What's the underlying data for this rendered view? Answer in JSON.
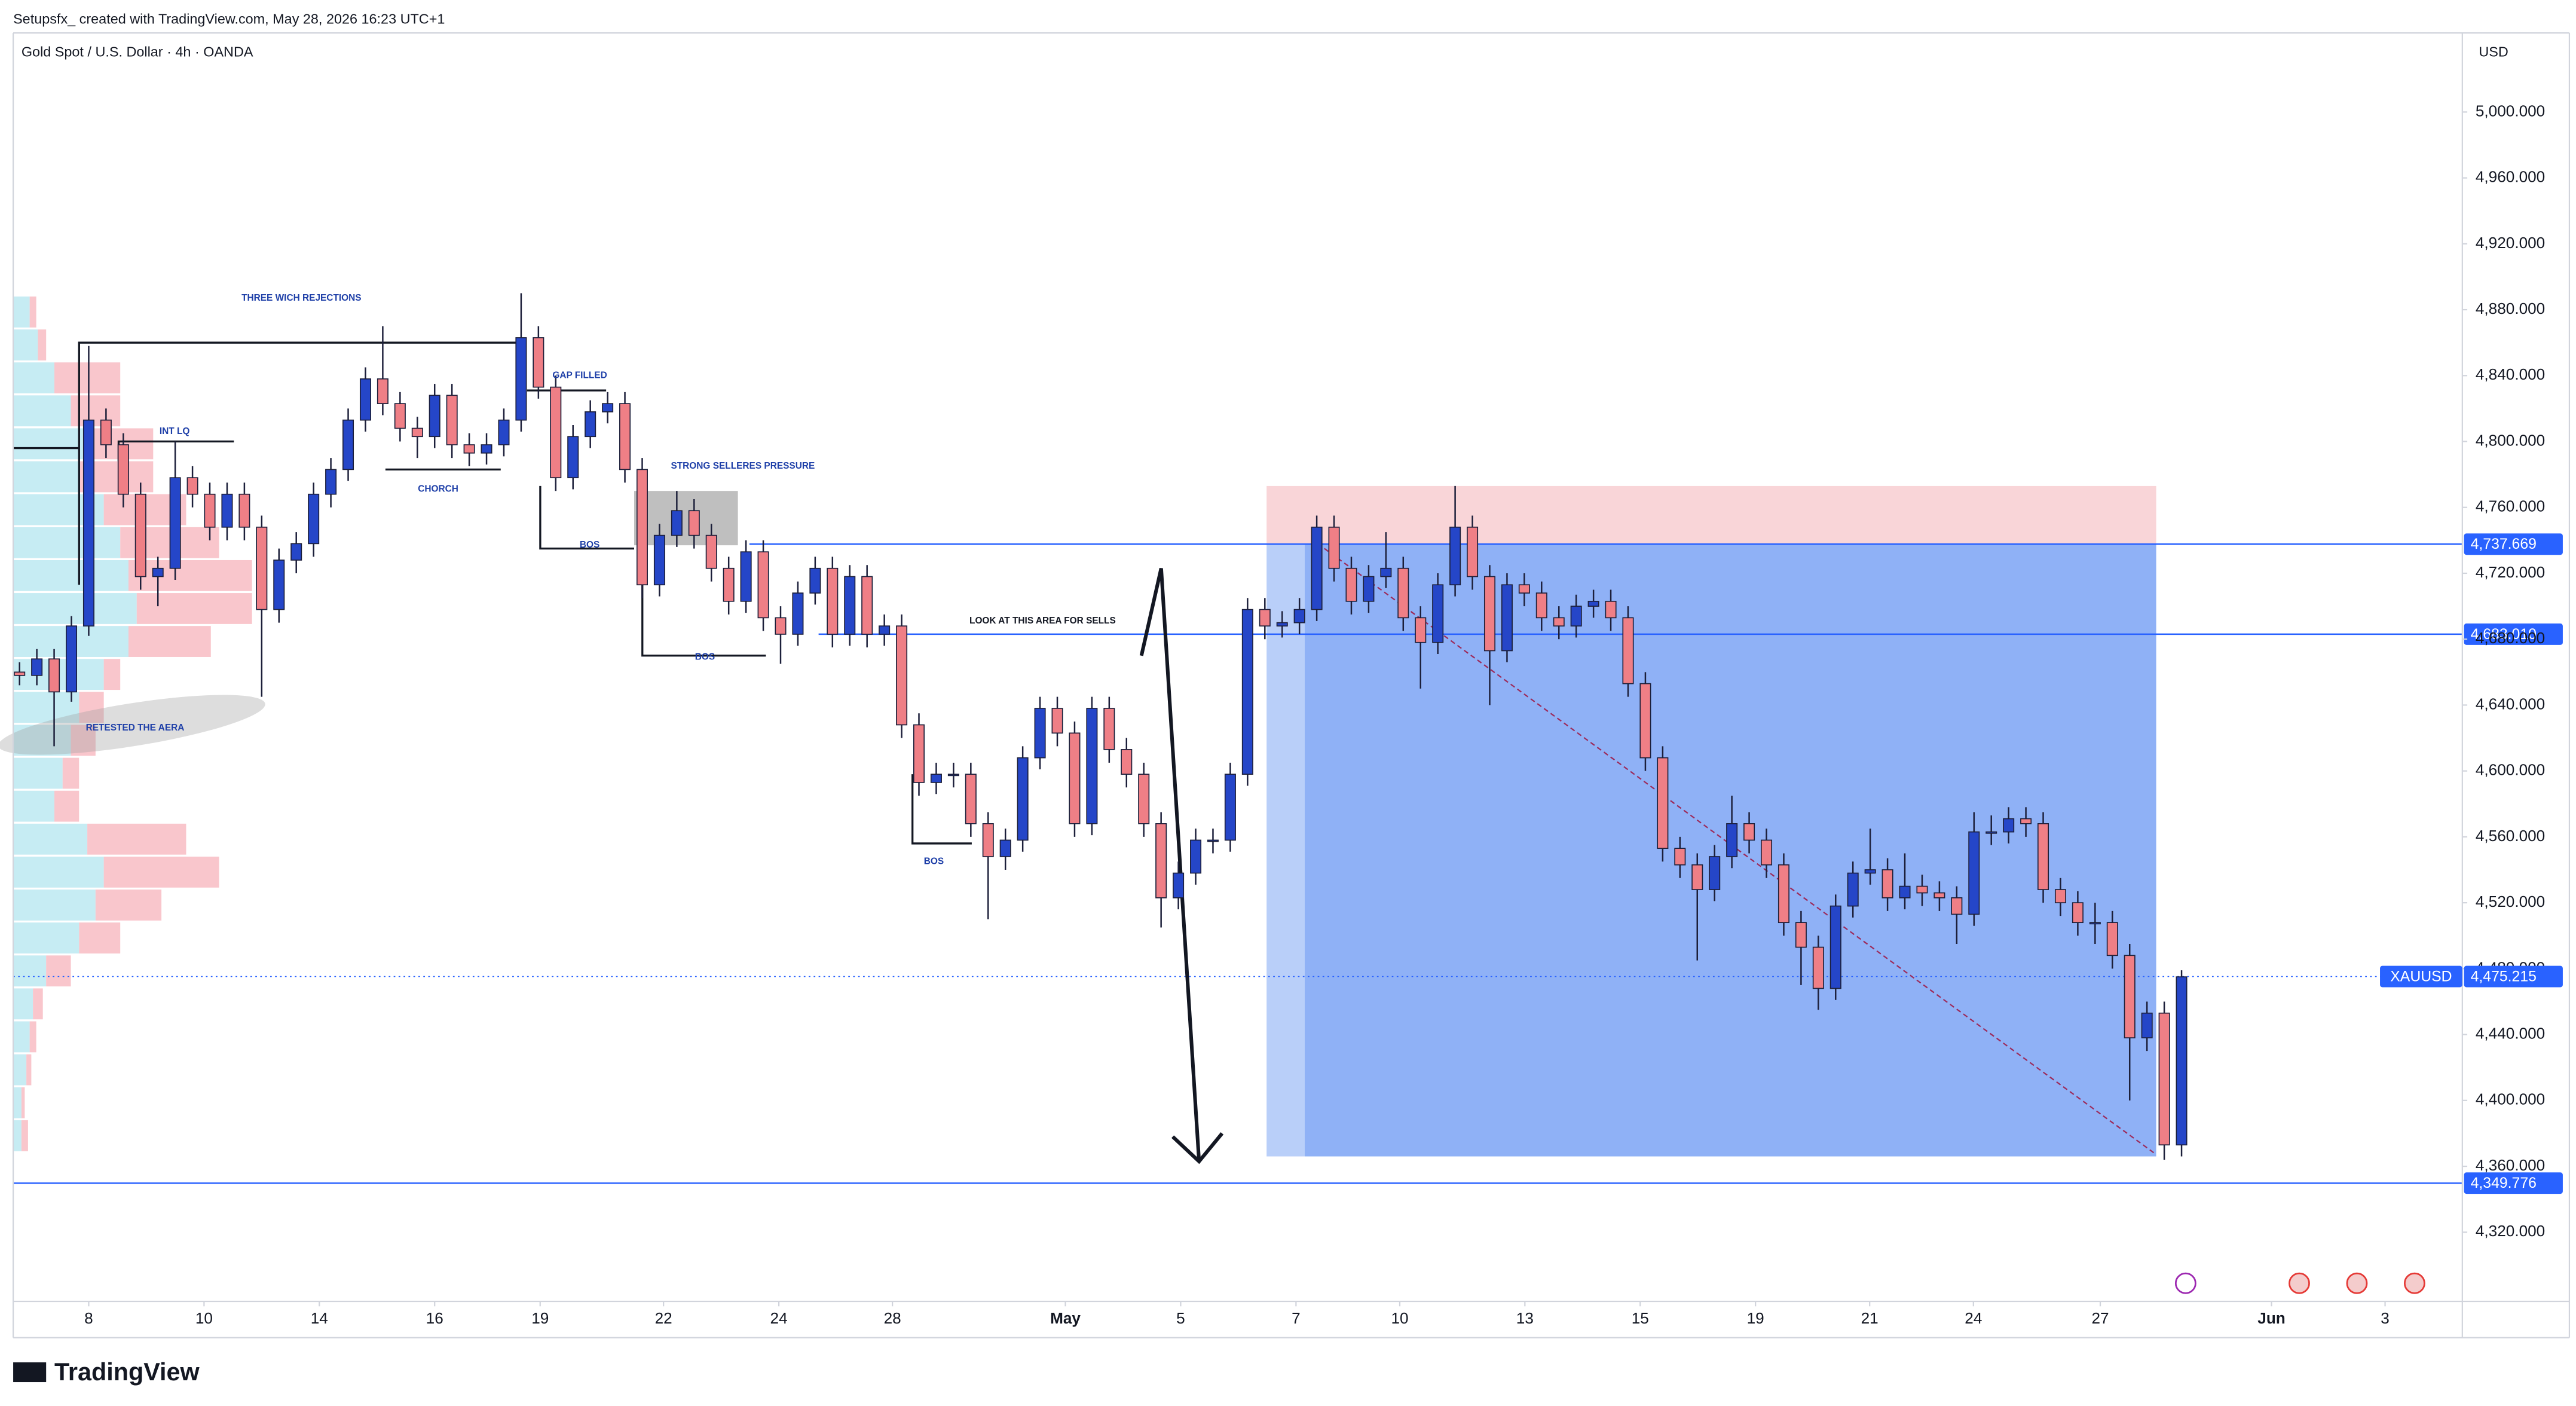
{
  "header": {
    "credit": "Setupsfx_  created with TradingView.com, May 28, 2026 16:23 UTC+1",
    "symbol_title": "Gold Spot / U.S. Dollar · 4h · OANDA",
    "currency": "USD",
    "logo": "TradingView"
  },
  "chart_data": {
    "type": "candlestick",
    "grid": false,
    "x": [
      -1.2,
      -0.9,
      -0.6,
      -0.3,
      0,
      0.3,
      0.6,
      0.9,
      1.2,
      1.5,
      1.8,
      2.1,
      2.4,
      2.7,
      3,
      3.3,
      3.6,
      3.9,
      4.2,
      4.5,
      4.8,
      5.1,
      5.4,
      5.7,
      6,
      6.3,
      6.6,
      6.9,
      7.2,
      7.5,
      7.8,
      8.1,
      8.4,
      8.7,
      9,
      9.3,
      9.6,
      9.9,
      10.2,
      10.5,
      10.8,
      11.1,
      11.4,
      11.7,
      12,
      12.3,
      12.6,
      12.9,
      13.2,
      13.5,
      13.8,
      14.1,
      14.4,
      14.7,
      15,
      15.3,
      15.6,
      15.9,
      16.2,
      16.5,
      16.8,
      17.1,
      17.4,
      17.7,
      18,
      18.3,
      18.6,
      18.9,
      19.2,
      19.5,
      19.8,
      20.1,
      20.4,
      20.7,
      21,
      21.3,
      21.6,
      21.9,
      22.2,
      22.5,
      22.8,
      23.1,
      23.4,
      23.7,
      24,
      24.3,
      24.6,
      24.9,
      25.2,
      25.5,
      25.8,
      26.1,
      26.4,
      26.7,
      27,
      27.3,
      27.6,
      27.9,
      28.2,
      28.5,
      28.8,
      29.1,
      29.4,
      29.7,
      30,
      30.3,
      30.6,
      30.9,
      31.2,
      31.5,
      31.8,
      32.1,
      32.4,
      32.7,
      33,
      33.3,
      33.6,
      33.9,
      34.2,
      34.5,
      34.8,
      35.1,
      35.4,
      35.7,
      36,
      36.3
    ],
    "open": [
      4660,
      4658,
      4668,
      4648,
      4688,
      4813,
      4798,
      4768,
      4718,
      4723,
      4778,
      4768,
      4748,
      4768,
      4748,
      4698,
      4728,
      4738,
      4768,
      4783,
      4813,
      4838,
      4823,
      4808,
      4803,
      4828,
      4798,
      4793,
      4798,
      4813,
      4863,
      4833,
      4778,
      4803,
      4818,
      4823,
      4783,
      4713,
      4743,
      4758,
      4743,
      4723,
      4703,
      4733,
      4693,
      4683,
      4708,
      4723,
      4683,
      4718,
      4683,
      4688,
      4628,
      4593,
      4598,
      4598,
      4568,
      4548,
      4558,
      4608,
      4638,
      4623,
      4568,
      4638,
      4613,
      4598,
      4568,
      4523,
      4538,
      4558,
      4558,
      4598,
      4698,
      4688,
      4690,
      4698,
      4748,
      4723,
      4703,
      4718,
      4723,
      4693,
      4678,
      4713,
      4748,
      4718,
      4673,
      4713,
      4708,
      4693,
      4688,
      4700,
      4703,
      4693,
      4653,
      4608,
      4553,
      4543,
      4528,
      4548,
      4568,
      4558,
      4543,
      4508,
      4493,
      4468,
      4518,
      4538,
      4540,
      4523,
      4530,
      4526,
      4523,
      4513,
      4563,
      4563,
      4571,
      4568,
      4528,
      4520,
      4508,
      4508,
      4488,
      4438,
      4453,
      4373
    ],
    "high": [
      4666,
      4674,
      4674,
      4694,
      4858,
      4820,
      4805,
      4775,
      4730,
      4800,
      4785,
      4775,
      4775,
      4775,
      4755,
      4735,
      4745,
      4775,
      4790,
      4820,
      4845,
      4870,
      4830,
      4815,
      4835,
      4835,
      4805,
      4805,
      4820,
      4890,
      4870,
      4840,
      4810,
      4825,
      4830,
      4830,
      4790,
      4750,
      4770,
      4765,
      4750,
      4730,
      4740,
      4740,
      4700,
      4715,
      4730,
      4730,
      4725,
      4725,
      4695,
      4695,
      4635,
      4605,
      4605,
      4605,
      4575,
      4565,
      4615,
      4645,
      4645,
      4630,
      4645,
      4645,
      4620,
      4605,
      4575,
      4545,
      4565,
      4565,
      4605,
      4705,
      4705,
      4697,
      4705,
      4755,
      4755,
      4730,
      4725,
      4745,
      4730,
      4700,
      4720,
      4773,
      4755,
      4725,
      4720,
      4720,
      4715,
      4700,
      4707,
      4710,
      4710,
      4700,
      4660,
      4615,
      4560,
      4550,
      4555,
      4585,
      4575,
      4565,
      4550,
      4515,
      4500,
      4525,
      4545,
      4565,
      4547,
      4550,
      4537,
      4533,
      4530,
      4575,
      4573,
      4578,
      4578,
      4575,
      4535,
      4527,
      4520,
      4515,
      4495,
      4460,
      4460,
      4479
    ],
    "low": [
      4652,
      4652,
      4615,
      4642,
      4682,
      4790,
      4760,
      4710,
      4700,
      4716,
      4760,
      4740,
      4740,
      4740,
      4645,
      4690,
      4720,
      4730,
      4760,
      4776,
      4806,
      4816,
      4800,
      4790,
      4796,
      4790,
      4785,
      4786,
      4791,
      4806,
      4826,
      4770,
      4771,
      4796,
      4811,
      4775,
      4705,
      4706,
      4736,
      4735,
      4715,
      4695,
      4696,
      4685,
      4665,
      4676,
      4701,
      4675,
      4676,
      4675,
      4676,
      4620,
      4585,
      4586,
      4590,
      4560,
      4510,
      4540,
      4551,
      4601,
      4615,
      4560,
      4561,
      4605,
      4590,
      4560,
      4505,
      4516,
      4531,
      4550,
      4551,
      4591,
      4680,
      4681,
      4683,
      4691,
      4715,
      4695,
      4696,
      4711,
      4685,
      4650,
      4671,
      4706,
      4710,
      4640,
      4666,
      4700,
      4685,
      4680,
      4681,
      4693,
      4685,
      4645,
      4600,
      4545,
      4535,
      4485,
      4521,
      4541,
      4550,
      4535,
      4500,
      4470,
      4455,
      4461,
      4511,
      4531,
      4515,
      4516,
      4518,
      4515,
      4495,
      4506,
      4555,
      4556,
      4560,
      4520,
      4512,
      4500,
      4495,
      4480,
      4400,
      4430,
      4364,
      4366
    ],
    "close": [
      4658,
      4668,
      4648,
      4688,
      4813,
      4798,
      4768,
      4718,
      4723,
      4778,
      4768,
      4748,
      4768,
      4748,
      4698,
      4728,
      4738,
      4768,
      4783,
      4813,
      4838,
      4823,
      4808,
      4803,
      4828,
      4798,
      4793,
      4798,
      4813,
      4863,
      4833,
      4778,
      4803,
      4818,
      4823,
      4783,
      4713,
      4743,
      4758,
      4743,
      4723,
      4703,
      4733,
      4693,
      4683,
      4708,
      4723,
      4683,
      4718,
      4683,
      4688,
      4628,
      4593,
      4598,
      4598,
      4568,
      4548,
      4558,
      4608,
      4638,
      4623,
      4568,
      4638,
      4613,
      4598,
      4568,
      4523,
      4538,
      4558,
      4558,
      4598,
      4698,
      4688,
      4690,
      4698,
      4748,
      4723,
      4703,
      4718,
      4723,
      4693,
      4678,
      4713,
      4748,
      4718,
      4673,
      4713,
      4708,
      4693,
      4688,
      4700,
      4703,
      4693,
      4653,
      4608,
      4553,
      4543,
      4528,
      4548,
      4568,
      4558,
      4543,
      4508,
      4493,
      4468,
      4518,
      4538,
      4540,
      4523,
      4530,
      4526,
      4523,
      4513,
      4563,
      4563,
      4571,
      4568,
      4528,
      4520,
      4508,
      4508,
      4488,
      4438,
      4453,
      4373,
      4475
    ],
    "up_color": "#2546c8",
    "down_color": "#ef7f86",
    "xlim": [
      -1.31,
      41.17
    ],
    "xticks": [
      {
        "value": 0,
        "label": "8"
      },
      {
        "value": 2,
        "label": "10"
      },
      {
        "value": 4,
        "label": "14"
      },
      {
        "value": 6,
        "label": "16"
      },
      {
        "value": 7.83,
        "label": "19"
      },
      {
        "value": 9.97,
        "label": "22"
      },
      {
        "value": 11.97,
        "label": "24"
      },
      {
        "value": 13.94,
        "label": "28"
      },
      {
        "value": 16.94,
        "label": "May"
      },
      {
        "value": 18.94,
        "label": "5"
      },
      {
        "value": 20.94,
        "label": "7"
      },
      {
        "value": 22.74,
        "label": "10"
      },
      {
        "value": 24.91,
        "label": "13"
      },
      {
        "value": 26.91,
        "label": "15"
      },
      {
        "value": 28.91,
        "label": "19"
      },
      {
        "value": 30.89,
        "label": "21"
      },
      {
        "value": 32.69,
        "label": "24"
      },
      {
        "value": 34.89,
        "label": "27"
      },
      {
        "value": 37.86,
        "label": "Jun"
      },
      {
        "value": 39.83,
        "label": "3"
      }
    ],
    "ylim": [
      4278,
      5048
    ],
    "yticks": [
      {
        "value": 4320,
        "label": "4,320.000"
      },
      {
        "value": 4360,
        "label": "4,360.000"
      },
      {
        "value": 4400,
        "label": "4,400.000"
      },
      {
        "value": 4440,
        "label": "4,440.000"
      },
      {
        "value": 4480,
        "label": "4,480.000"
      },
      {
        "value": 4520,
        "label": "4,520.000"
      },
      {
        "value": 4560,
        "label": "4,560.000"
      },
      {
        "value": 4600,
        "label": "4,600.000"
      },
      {
        "value": 4640,
        "label": "4,640.000"
      },
      {
        "value": 4680,
        "label": "4,680.000"
      },
      {
        "value": 4720,
        "label": "4,720.000"
      },
      {
        "value": 4760,
        "label": "4,760.000"
      },
      {
        "value": 4800,
        "label": "4,800.000"
      },
      {
        "value": 4840,
        "label": "4,840.000"
      },
      {
        "value": 4880,
        "label": "4,880.000"
      },
      {
        "value": 4920,
        "label": "4,920.000"
      },
      {
        "value": 4960,
        "label": "4,960.000"
      },
      {
        "value": 5000,
        "label": "5,000.000"
      }
    ],
    "price_lines": [
      {
        "value": 4737.669,
        "label": "4,737.669"
      },
      {
        "value": 4683.01,
        "label": "4,683.010"
      },
      {
        "value": 4349.776,
        "label": "4,349.776"
      }
    ],
    "last_price": {
      "symbol": "XAUUSD",
      "value": 4475.215,
      "label": "4,475.215"
    },
    "position": {
      "x_start": 20.43,
      "x_mid": 21.09,
      "x_end": 35.86,
      "stop": 4773,
      "target": 4366
    },
    "volume_profile": {
      "levels": [
        4888,
        4868,
        4848,
        4828,
        4808,
        4788,
        4768,
        4748,
        4728,
        4708,
        4688,
        4668,
        4648,
        4628,
        4608,
        4588,
        4568,
        4548,
        4528,
        4508,
        4488,
        4468,
        4448,
        4428,
        4408,
        4388
      ],
      "up": [
        10,
        15,
        25,
        35,
        45,
        40,
        55,
        65,
        70,
        75,
        70,
        55,
        40,
        35,
        30,
        25,
        45,
        55,
        50,
        40,
        20,
        12,
        10,
        8,
        5,
        5
      ],
      "down": [
        4,
        5,
        40,
        30,
        40,
        45,
        50,
        60,
        75,
        70,
        50,
        10,
        15,
        15,
        10,
        15,
        60,
        70,
        40,
        25,
        15,
        6,
        4,
        3,
        2,
        4
      ]
    },
    "annotations": [
      "THREE WICH REJECTIONS",
      "INT LQ",
      "GAP FILLED",
      "STRONG SELLERES PRESSURE",
      "CHORCH",
      "BOS",
      "BOS",
      "BOS",
      "RETESTED THE AERA",
      "LOOK AT THIS AREA FOR SELLS"
    ]
  }
}
